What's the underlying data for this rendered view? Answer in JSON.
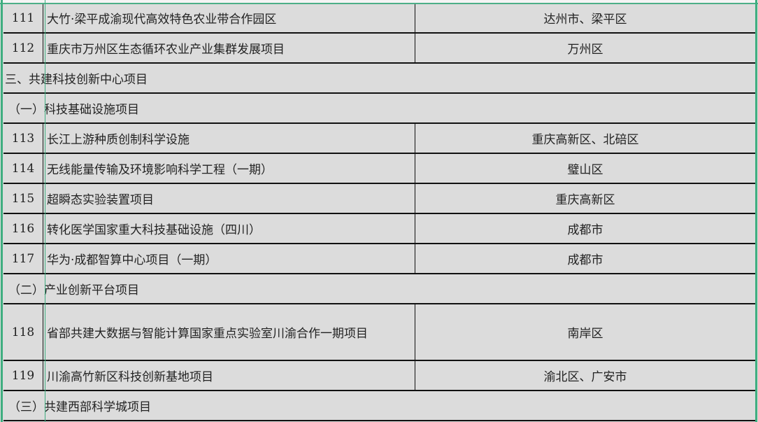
{
  "rows": [
    {
      "type": "item",
      "no": "111",
      "name": "大竹·梁平成渝现代高效特色农业带合作园区",
      "location": "达州市、梁平区"
    },
    {
      "type": "item",
      "no": "112",
      "name": "重庆市万州区生态循环农业产业集群发展项目",
      "location": "万州区"
    },
    {
      "type": "section",
      "title": "三、共建科技创新中心项目"
    },
    {
      "type": "subsection",
      "title": "（一）科技基础设施项目"
    },
    {
      "type": "item",
      "no": "113",
      "name": "长江上游种质创制科学设施",
      "location": "重庆高新区、北碚区"
    },
    {
      "type": "item",
      "no": "114",
      "name": "无线能量传输及环境影响科学工程（一期）",
      "location": "璧山区"
    },
    {
      "type": "item",
      "no": "115",
      "name": "超瞬态实验装置项目",
      "location": "重庆高新区"
    },
    {
      "type": "item",
      "no": "116",
      "name": "转化医学国家重大科技基础设施（四川）",
      "location": "成都市"
    },
    {
      "type": "item",
      "no": "117",
      "name": "华为·成都智算中心项目（一期）",
      "location": "成都市"
    },
    {
      "type": "subsection",
      "title": "（二）产业创新平台项目"
    },
    {
      "type": "item",
      "no": "118",
      "name": "省部共建大数据与智能计算国家重点实验室川渝合作一期项目",
      "location": "南岸区"
    },
    {
      "type": "item",
      "no": "119",
      "name": "川渝高竹新区科技创新基地项目",
      "location": "渝北区、广安市"
    },
    {
      "type": "subsection",
      "title": "（三）共建西部科学城项目"
    }
  ]
}
